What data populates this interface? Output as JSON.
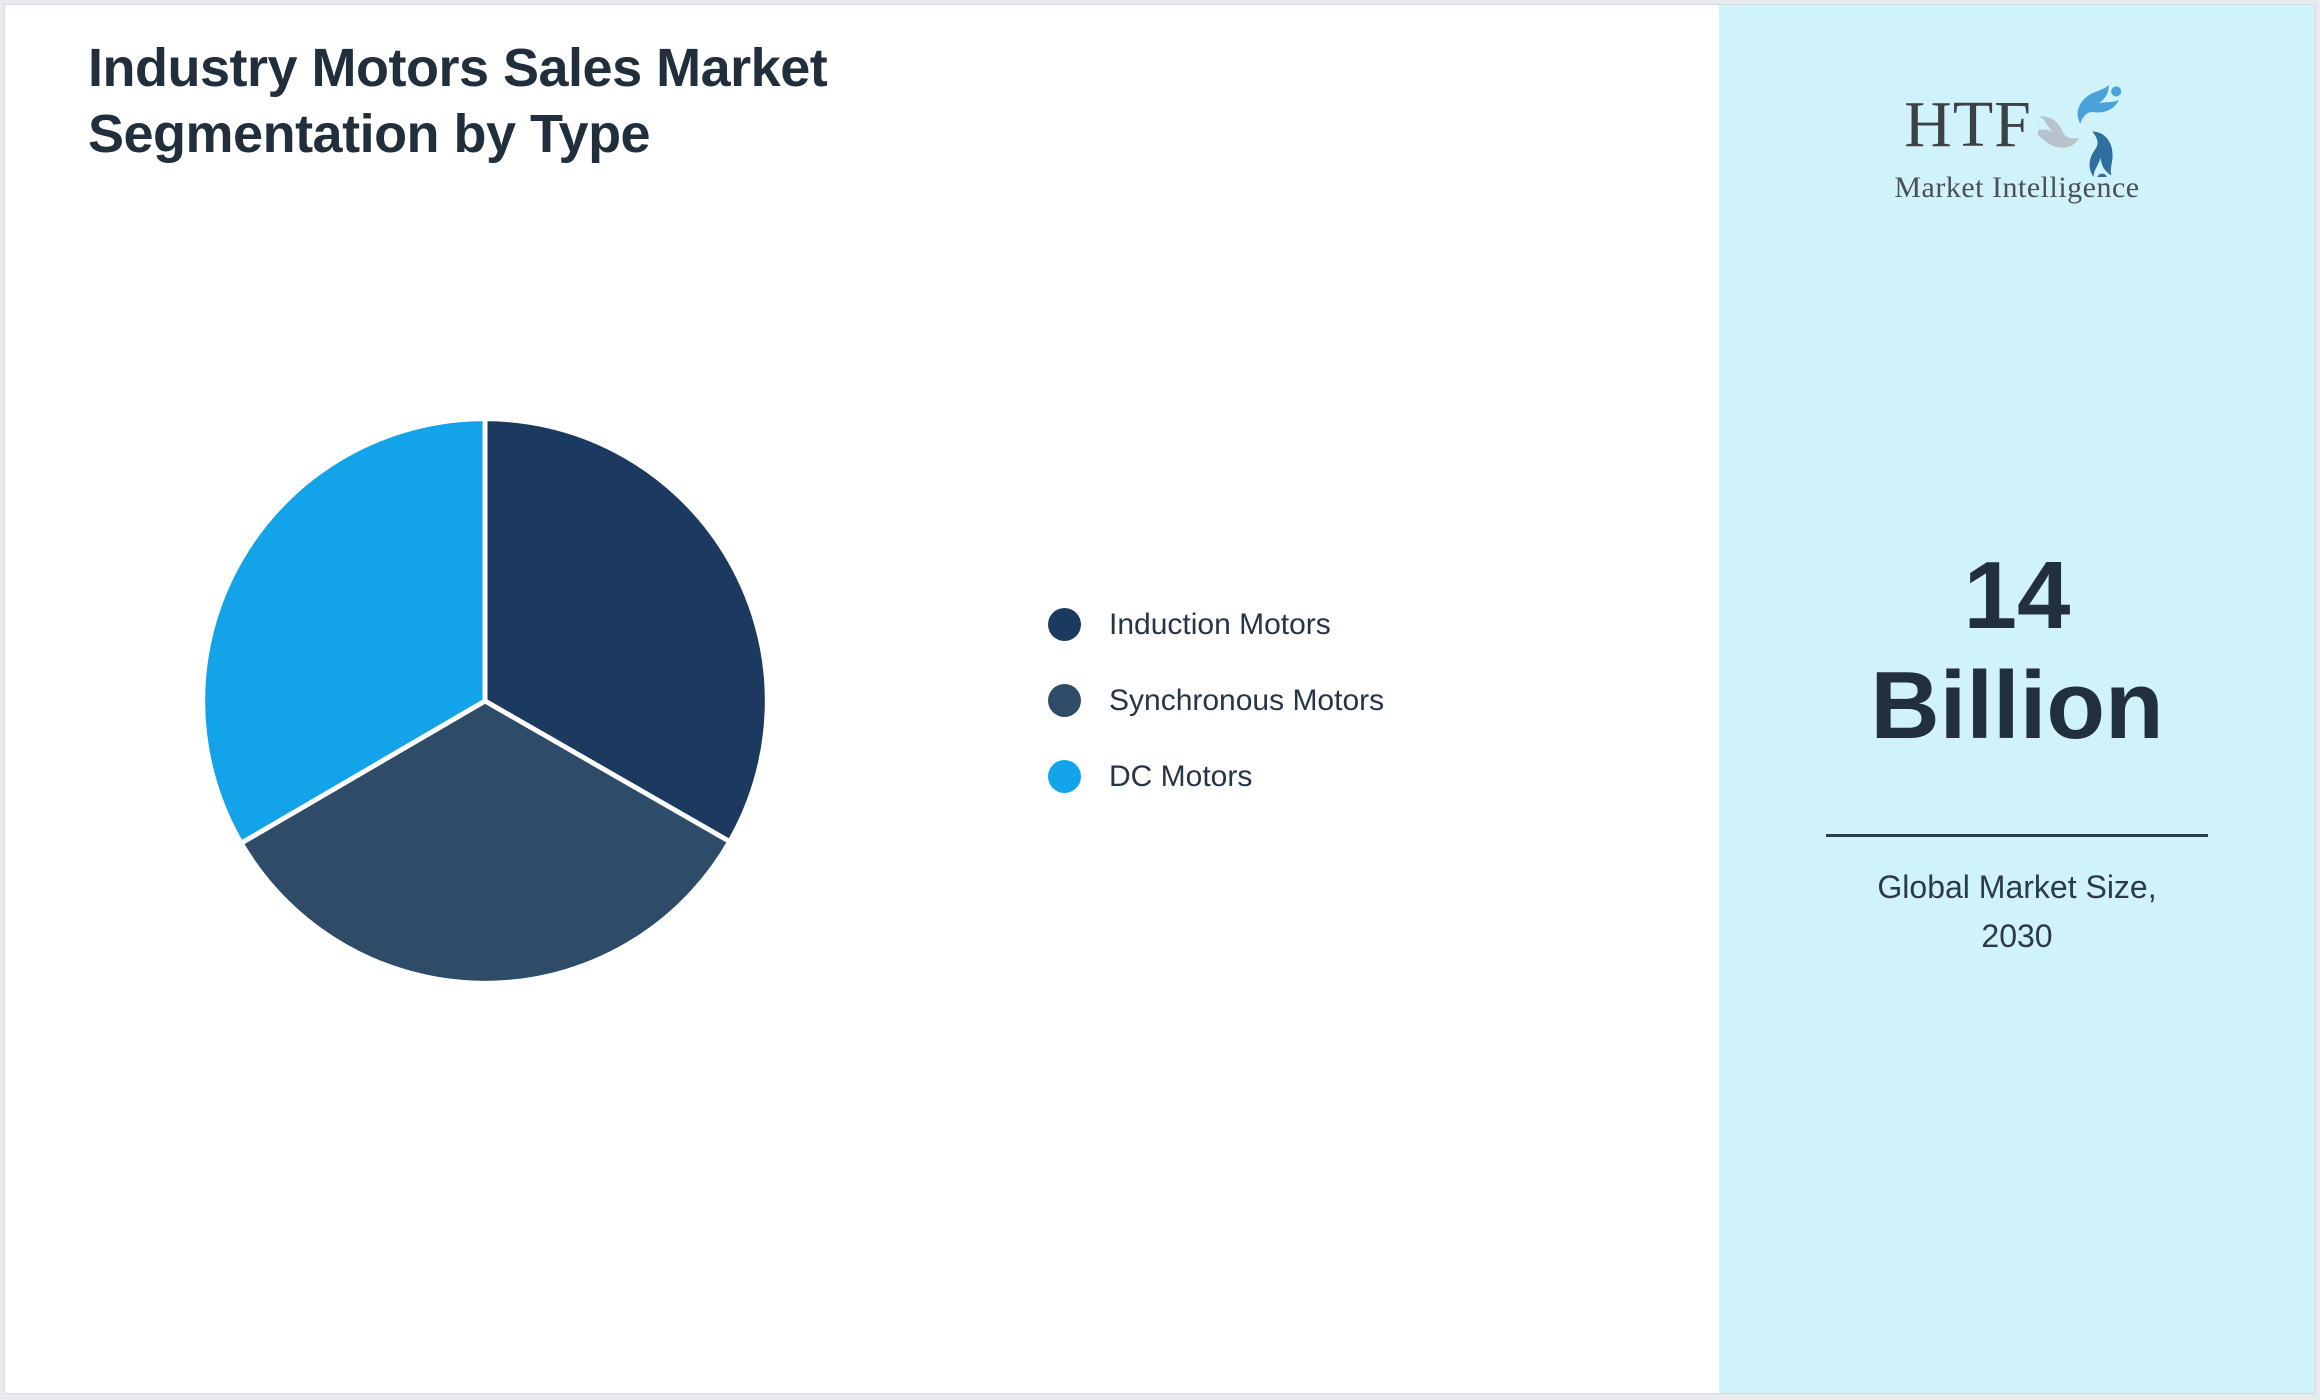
{
  "page": {
    "title_lines": [
      "Industry Motors Sales Market",
      "Segmentation by Type"
    ]
  },
  "chart_data": {
    "type": "pie",
    "title": "Industry Motors Sales Market Segmentation by Type",
    "categories": [
      "Induction Motors",
      "Synchronous Motors",
      "DC Motors"
    ],
    "values": [
      33.3,
      33.3,
      33.4
    ],
    "colors": [
      "#1c3a60",
      "#2e4c68",
      "#12a3e8"
    ],
    "start_angle_deg": 0,
    "slice_gap_color": "#ffffff",
    "legend_position": "right",
    "labels_shown_on_slices": false
  },
  "sidebar": {
    "logo": {
      "text": "HTF",
      "subtext": "Market Intelligence",
      "swirl_colors": [
        "#4aa3d8",
        "#2f6f9f",
        "#b7c2ca"
      ]
    },
    "stat": {
      "value": "14",
      "unit": "Billion"
    },
    "caption_lines": [
      "Global Market Size,",
      "2030"
    ],
    "background": "#d0f3fb"
  },
  "colors": {
    "page_background": "#e8eaed",
    "card_background": "#ffffff",
    "title_text": "#212f3d",
    "legend_text": "#263545",
    "divider": "#2c3d4f"
  }
}
